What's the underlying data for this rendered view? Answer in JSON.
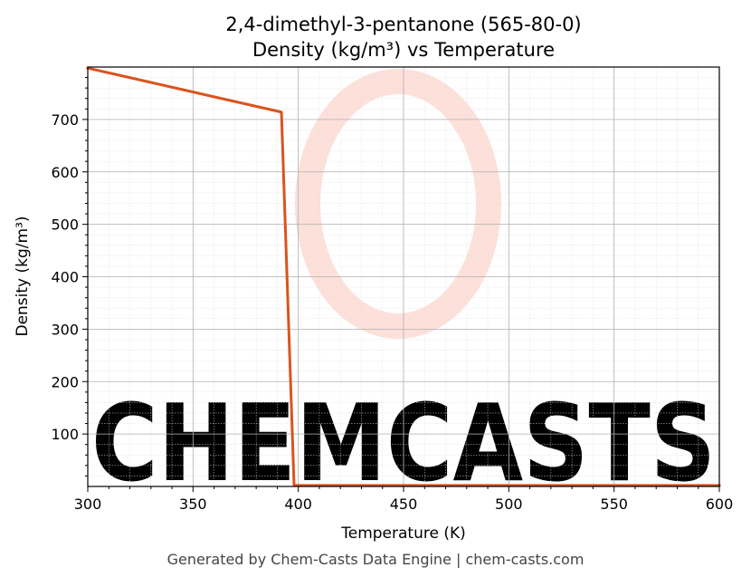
{
  "title_line1": "2,4-dimethyl-3-pentanone (565-80-0)",
  "title_line2": "Density (kg/m³) vs Temperature",
  "footer": "Generated by Chem-Casts Data Engine | chem-casts.com",
  "watermark": "CHEMCASTS",
  "colors": {
    "line": "#d9541e",
    "watermark": "#fde0da",
    "grid": "#b0b0b0"
  },
  "chart_data": {
    "type": "line",
    "xlabel": "Temperature (K)",
    "ylabel": "Density (kg/m³)",
    "xlim": [
      300,
      600
    ],
    "ylim": [
      0,
      800
    ],
    "xticks": [
      300,
      350,
      400,
      450,
      500,
      550,
      600
    ],
    "yticks": [
      100,
      200,
      300,
      400,
      500,
      600,
      700
    ],
    "grid": true,
    "series": [
      {
        "x": [
          300,
          392,
          398,
          600
        ],
        "y": [
          798,
          714,
          2,
          2
        ]
      }
    ]
  }
}
